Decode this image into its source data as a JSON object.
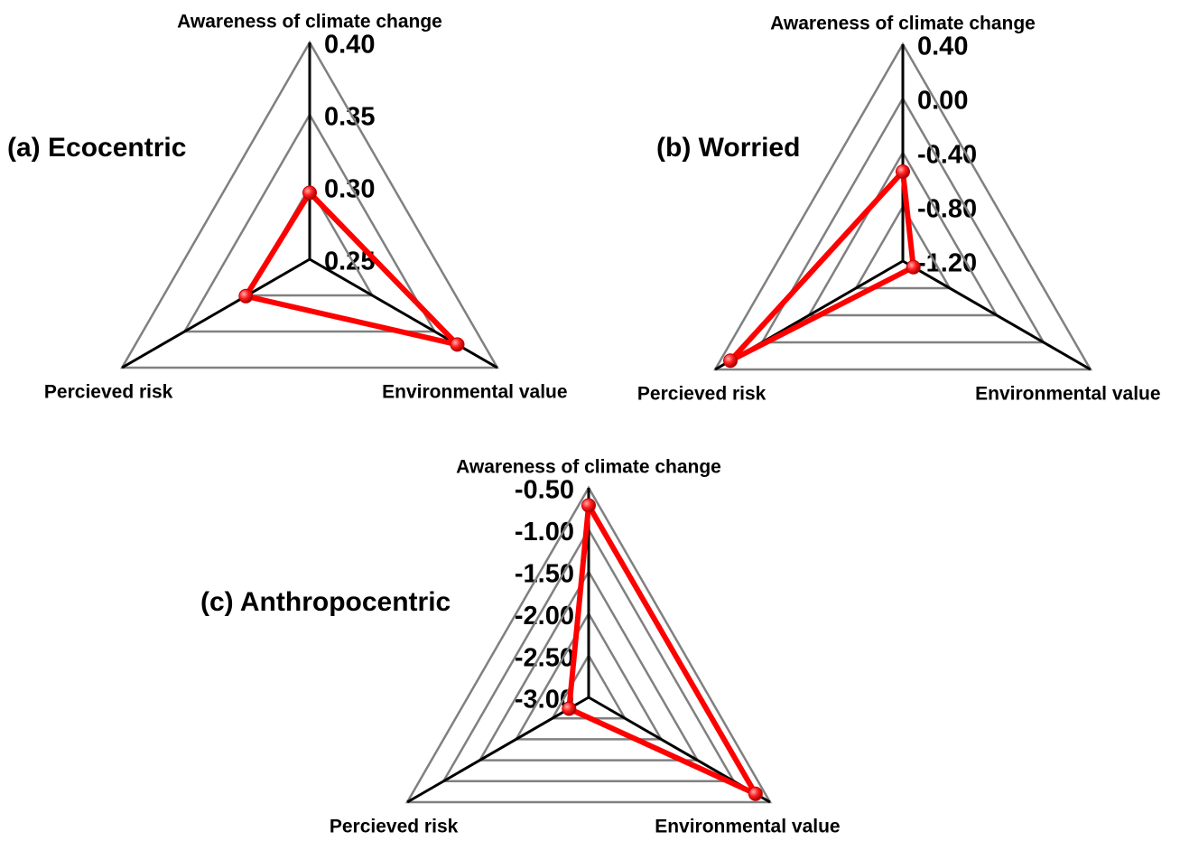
{
  "chart_data": [
    {
      "type": "radar",
      "title": "(a) Ecocentric",
      "categories": [
        "Awareness of climate change",
        "Environmental value",
        "Percieved risk"
      ],
      "values": [
        0.296,
        0.368,
        0.301
      ],
      "color": "#ff0000",
      "ylim": [
        0.25,
        0.4
      ],
      "yticks": [
        0.25,
        {
          "value": 0.3,
          "label": "0.30"
        },
        0.35,
        {
          "value": 0.4,
          "label": "0.40"
        }
      ]
    },
    {
      "type": "radar",
      "title": "(b) Worried",
      "categories": [
        "Awareness of climate change",
        "Environmental value",
        "Percieved risk"
      ],
      "values": [
        -0.54,
        -1.11,
        0.27
      ],
      "color": "#ff0000",
      "ylim": [
        -1.2,
        0.4
      ],
      "yticks": [
        {
          "value": -1.2,
          "label": "-1.20"
        },
        {
          "value": -0.8,
          "label": "-0.80"
        },
        {
          "value": -0.4,
          "label": "-0.40"
        },
        {
          "value": 0.0,
          "label": "0.00"
        },
        {
          "value": 0.4,
          "label": "0.40"
        }
      ]
    },
    {
      "type": "radar",
      "title": "(c) Anthropocentric",
      "categories": [
        "Awareness of climate change",
        "Environmental value",
        "Percieved risk"
      ],
      "values": [
        -0.71,
        -0.7,
        -2.73
      ],
      "color": "#ff0000",
      "ylim": [
        -3.0,
        -0.5
      ],
      "yticks": [
        {
          "value": -3.0,
          "label": "-3.00"
        },
        {
          "value": -2.5,
          "label": "-2.50"
        },
        {
          "value": -2.0,
          "label": "-2.00"
        },
        {
          "value": -1.5,
          "label": "-1.50"
        },
        {
          "value": -1.0,
          "label": "-1.00"
        },
        {
          "value": -0.5,
          "label": "-0.50"
        }
      ]
    }
  ]
}
